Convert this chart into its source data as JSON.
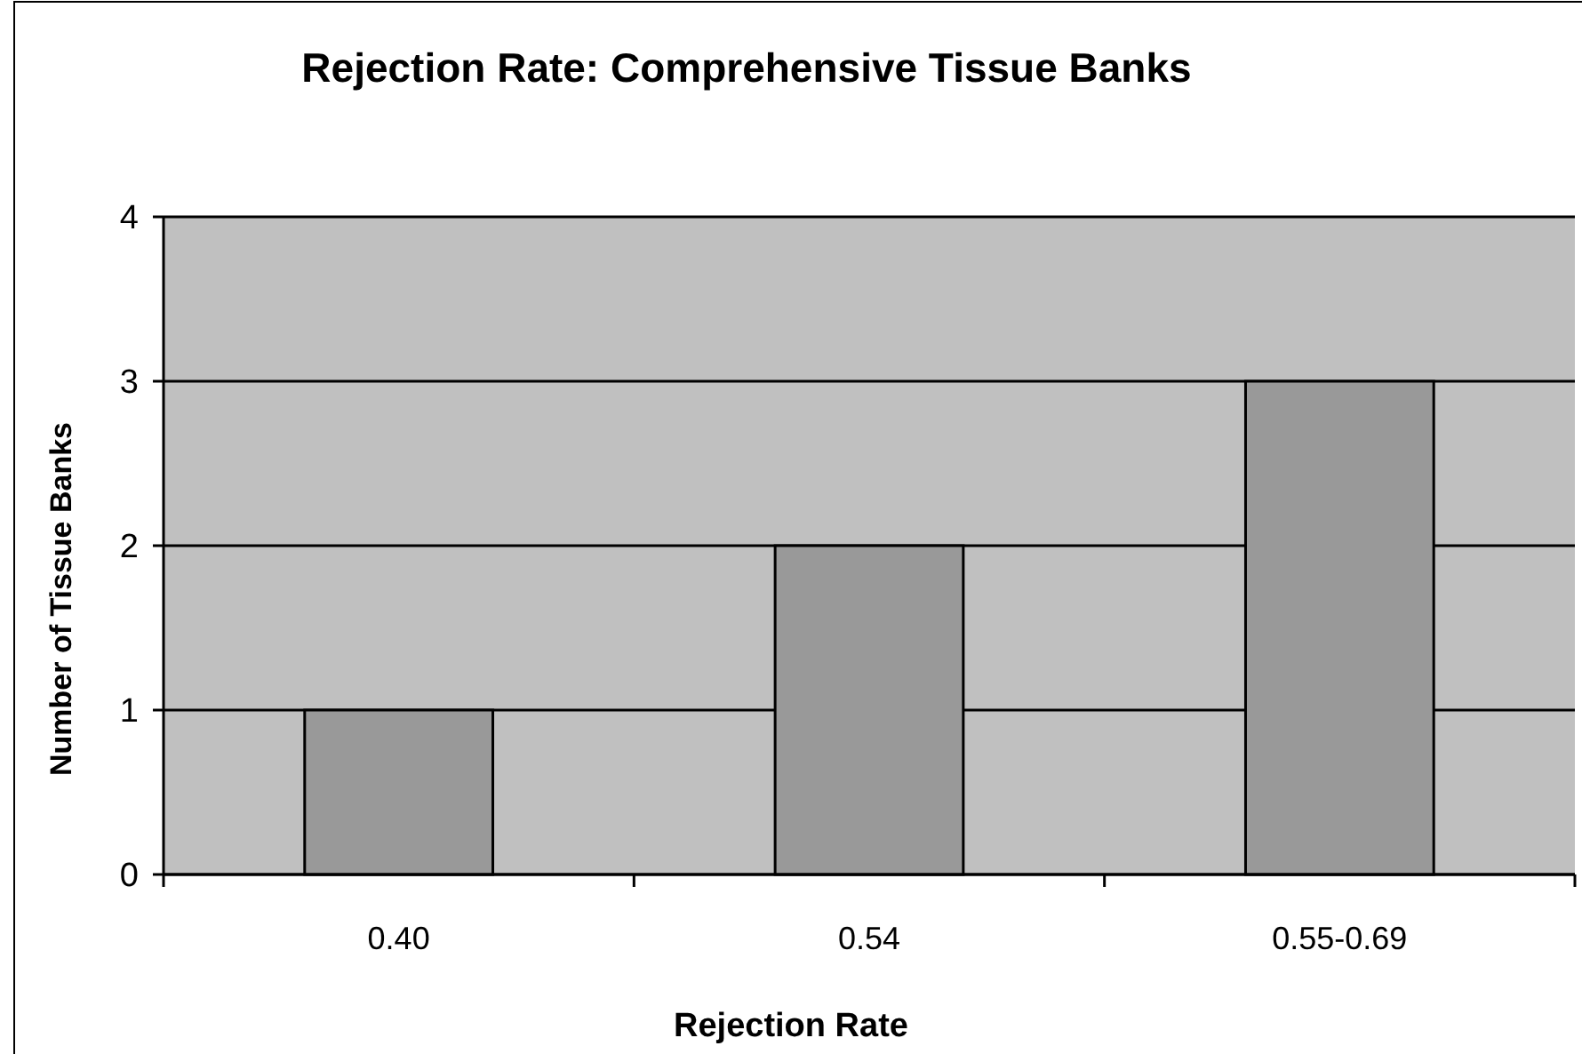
{
  "chart_data": {
    "type": "bar",
    "title": "Rejection Rate: Comprehensive Tissue Banks",
    "xlabel": "Rejection Rate",
    "ylabel": "Number of Tissue Banks",
    "categories": [
      "0.40",
      "0.54",
      "0.55-0.69"
    ],
    "values": [
      1,
      2,
      3
    ],
    "color": "#999999",
    "ylim": [
      0,
      4
    ],
    "yticks": [
      0,
      1,
      2,
      3,
      4
    ],
    "grid": "y"
  }
}
